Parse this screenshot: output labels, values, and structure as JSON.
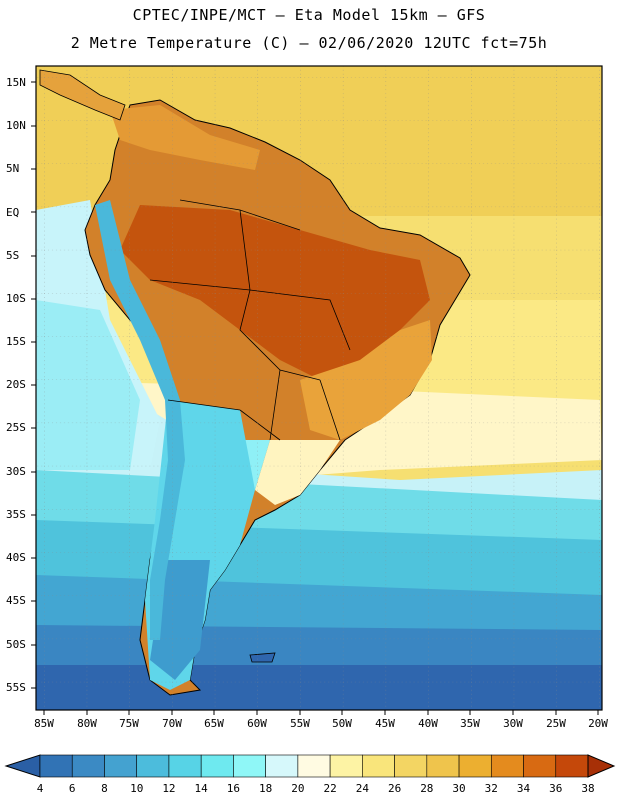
{
  "header": {
    "line1": "CPTEC/INPE/MCT –   Eta Model 15km – GFS",
    "line2": "2 Metre Temperature (C) – 02/06/2020 12UTC fct=75h"
  },
  "map": {
    "lat_labels": [
      "15N",
      "10N",
      "5N",
      "EQ",
      "5S",
      "10S",
      "15S",
      "20S",
      "25S",
      "30S",
      "35S",
      "40S",
      "45S",
      "50S",
      "55S"
    ],
    "lon_labels": [
      "85W",
      "80W",
      "75W",
      "70W",
      "65W",
      "60W",
      "55W",
      "50W",
      "45W",
      "40W",
      "35W",
      "30W",
      "25W",
      "20W"
    ],
    "region": "South America"
  },
  "colorbar": {
    "labels": [
      "4",
      "6",
      "8",
      "10",
      "12",
      "14",
      "16",
      "18",
      "20",
      "22",
      "24",
      "26",
      "28",
      "30",
      "32",
      "34",
      "36",
      "38"
    ],
    "colors": [
      "#2a5fa5",
      "#3173b5",
      "#3b8ac4",
      "#44a2d0",
      "#4cbcdc",
      "#57d3e6",
      "#6ee9ef",
      "#8ff7f7",
      "#d6f8fb",
      "#fffbe2",
      "#fdf3a4",
      "#f9e57b",
      "#f3d563",
      "#efc44c",
      "#ecaf30",
      "#e48b1e",
      "#d86a12",
      "#c5480a",
      "#a73007"
    ]
  }
}
